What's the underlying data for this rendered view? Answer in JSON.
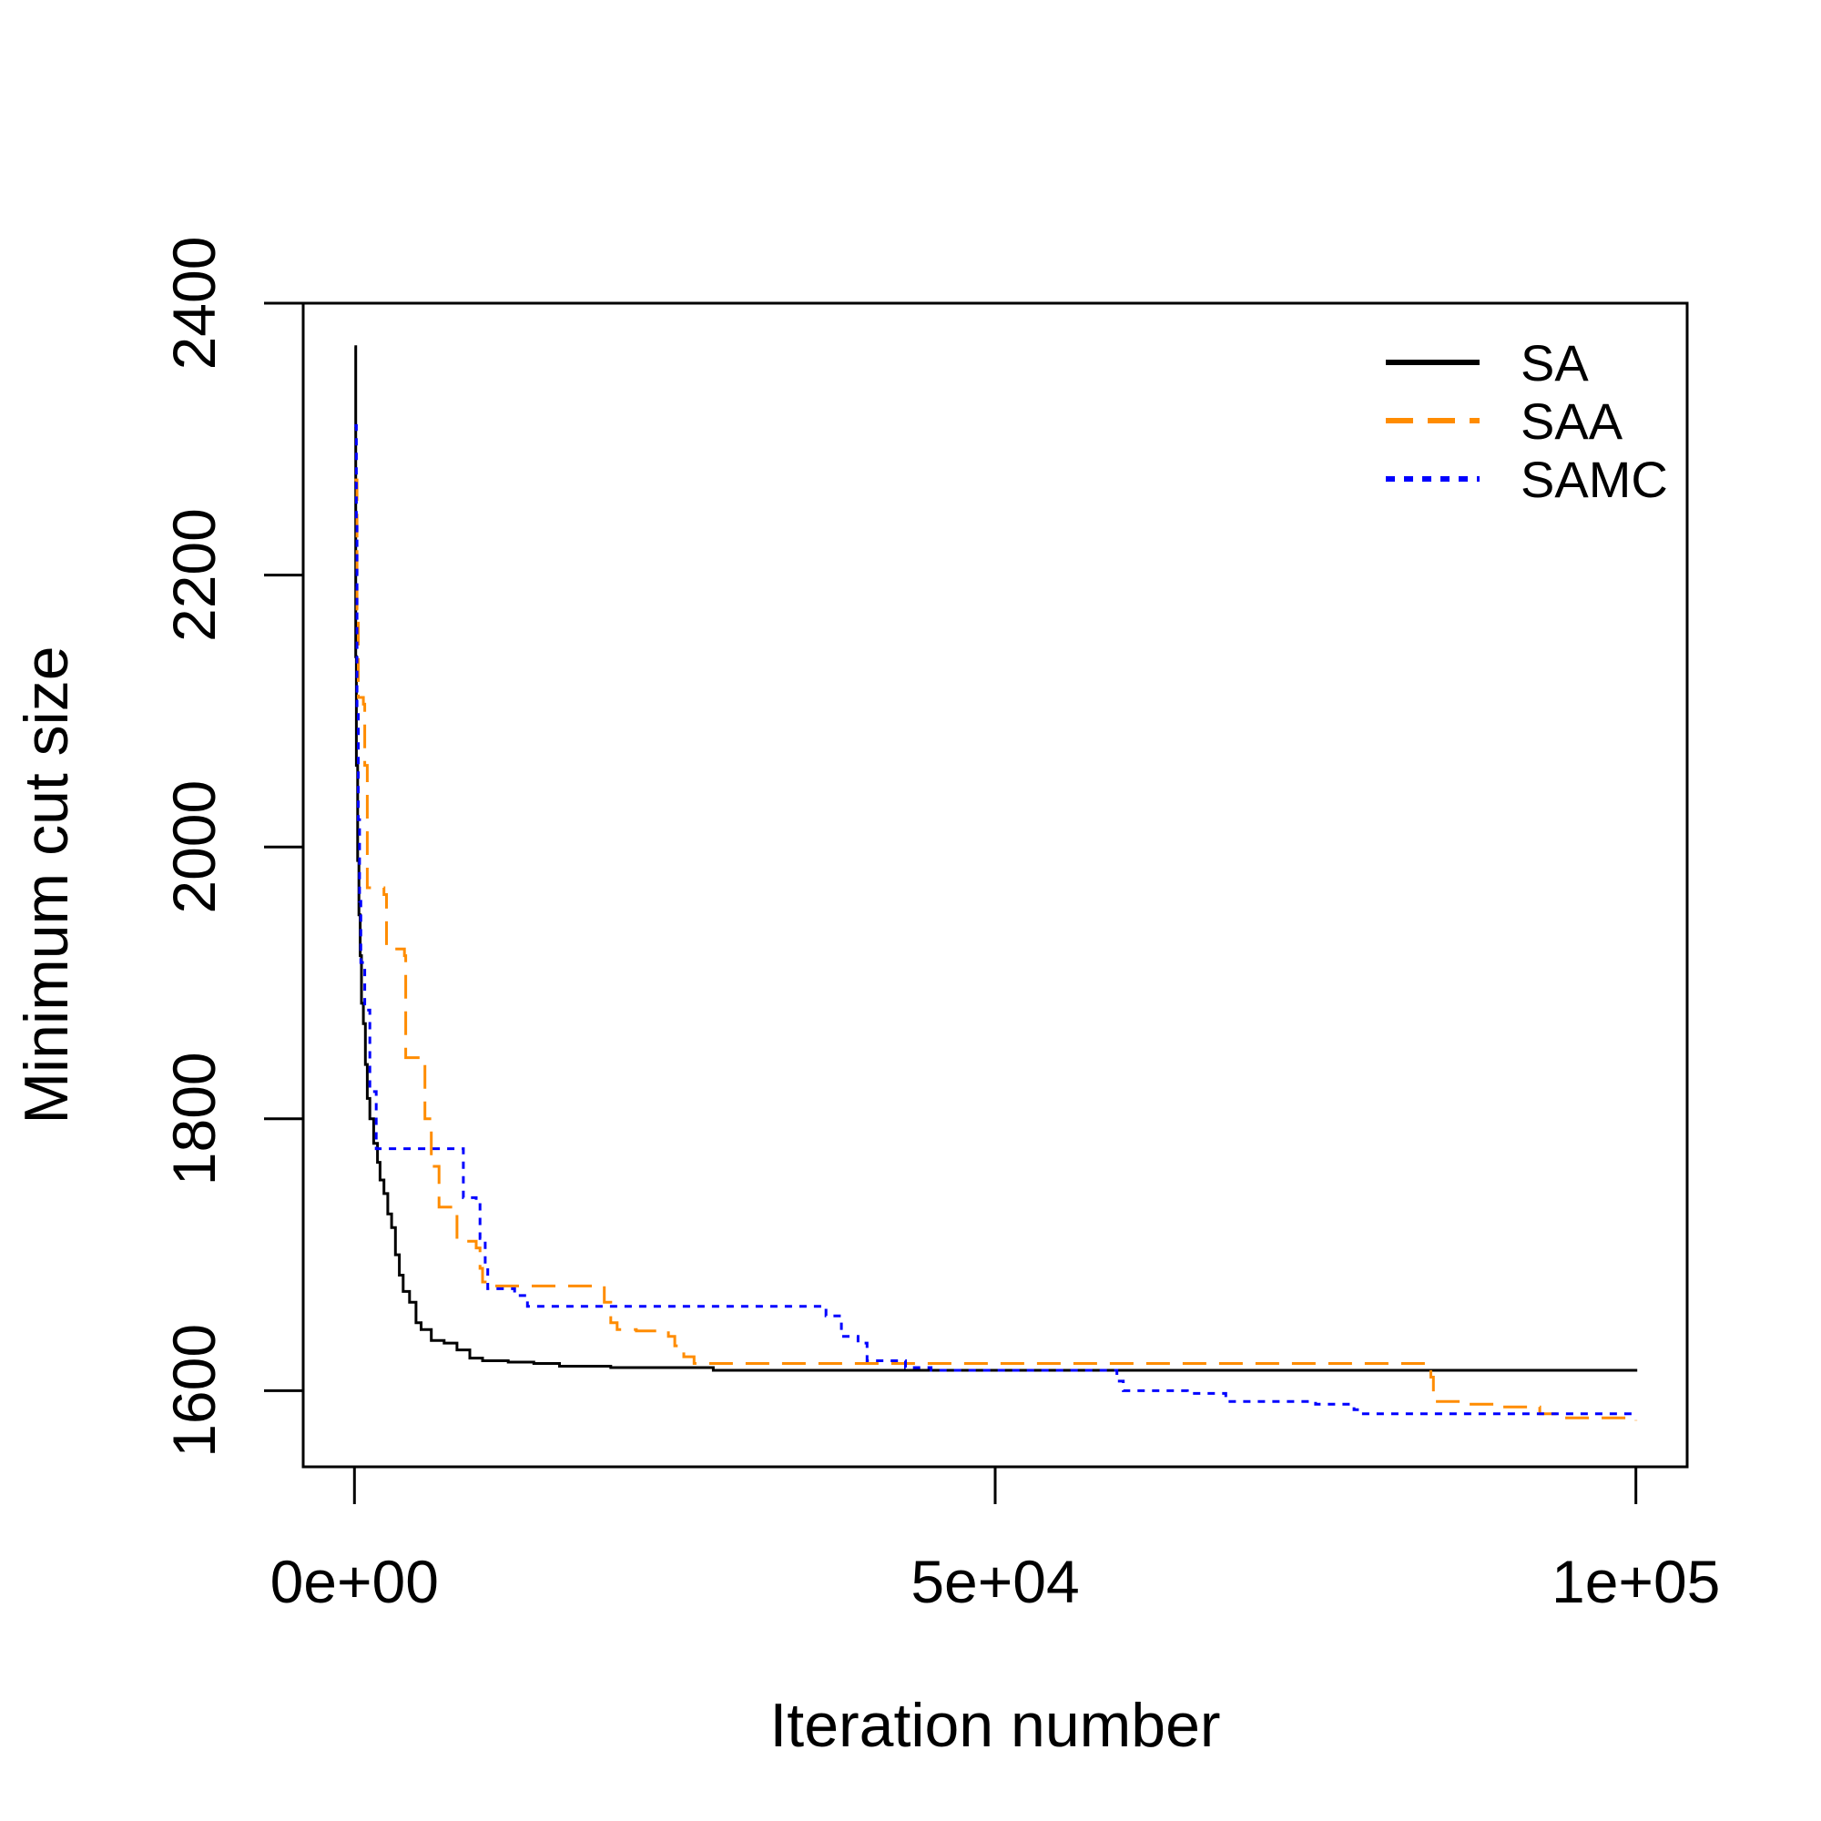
{
  "chart_data": {
    "type": "line",
    "title": "",
    "xlabel": "Iteration number",
    "ylabel": "Minimum cut size",
    "xlim": [
      -4000,
      104000
    ],
    "ylim": [
      1544,
      2400
    ],
    "xticks": [
      0,
      50000,
      100000
    ],
    "xtick_labels": [
      "0e+00",
      "5e+04",
      "1e+05"
    ],
    "yticks": [
      1600,
      1800,
      2000,
      2200,
      2400
    ],
    "ytick_labels": [
      "1600",
      "1800",
      "2000",
      "2200",
      "2400"
    ],
    "legend": {
      "position": "top-right",
      "box": false
    },
    "grid": false,
    "series": [
      {
        "name": "SA",
        "color": "#000000",
        "style": "solid",
        "points": [
          [
            0,
            2368
          ],
          [
            100,
            2140
          ],
          [
            150,
            2060
          ],
          [
            250,
            1990
          ],
          [
            350,
            1950
          ],
          [
            450,
            1920
          ],
          [
            550,
            1885
          ],
          [
            700,
            1870
          ],
          [
            850,
            1840
          ],
          [
            1000,
            1815
          ],
          [
            1200,
            1800
          ],
          [
            1500,
            1782
          ],
          [
            1800,
            1768
          ],
          [
            2000,
            1755
          ],
          [
            2300,
            1745
          ],
          [
            2600,
            1730
          ],
          [
            2900,
            1720
          ],
          [
            3200,
            1700
          ],
          [
            3500,
            1685
          ],
          [
            3800,
            1673
          ],
          [
            4300,
            1665
          ],
          [
            4800,
            1650
          ],
          [
            5200,
            1645
          ],
          [
            6000,
            1637
          ],
          [
            7000,
            1635
          ],
          [
            8000,
            1630
          ],
          [
            9000,
            1624
          ],
          [
            10000,
            1622
          ],
          [
            12000,
            1621
          ],
          [
            14000,
            1620
          ],
          [
            16000,
            1618
          ],
          [
            20000,
            1617
          ],
          [
            24000,
            1617
          ],
          [
            28000,
            1615
          ],
          [
            86000,
            1615
          ],
          [
            100000,
            1614
          ]
        ]
      },
      {
        "name": "SAA",
        "color": "#ff8c00",
        "style": "dashed",
        "points": [
          [
            0,
            2270
          ],
          [
            200,
            2175
          ],
          [
            300,
            2110
          ],
          [
            700,
            2105
          ],
          [
            800,
            2060
          ],
          [
            1000,
            1970
          ],
          [
            2300,
            1965
          ],
          [
            2500,
            1925
          ],
          [
            3900,
            1920
          ],
          [
            4000,
            1845
          ],
          [
            5200,
            1840
          ],
          [
            5500,
            1800
          ],
          [
            6000,
            1765
          ],
          [
            6600,
            1735
          ],
          [
            7800,
            1730
          ],
          [
            8000,
            1710
          ],
          [
            9500,
            1705
          ],
          [
            9800,
            1690
          ],
          [
            10000,
            1680
          ],
          [
            10500,
            1677
          ],
          [
            19000,
            1677
          ],
          [
            19500,
            1665
          ],
          [
            20000,
            1650
          ],
          [
            20500,
            1645
          ],
          [
            22000,
            1644
          ],
          [
            24500,
            1640
          ],
          [
            25000,
            1633
          ],
          [
            25700,
            1625
          ],
          [
            26500,
            1620
          ],
          [
            83600,
            1620
          ],
          [
            84000,
            1610
          ],
          [
            84200,
            1592
          ],
          [
            86500,
            1590
          ],
          [
            89000,
            1588
          ],
          [
            92500,
            1583
          ],
          [
            94000,
            1580
          ],
          [
            100000,
            1578
          ]
        ]
      },
      {
        "name": "SAMC",
        "color": "#0000ff",
        "style": "dotted",
        "points": [
          [
            0,
            2310
          ],
          [
            150,
            2240
          ],
          [
            200,
            2100
          ],
          [
            300,
            2020
          ],
          [
            400,
            1960
          ],
          [
            500,
            1915
          ],
          [
            800,
            1880
          ],
          [
            1200,
            1820
          ],
          [
            1700,
            1778
          ],
          [
            8300,
            1778
          ],
          [
            8500,
            1742
          ],
          [
            9500,
            1738
          ],
          [
            9800,
            1712
          ],
          [
            10200,
            1690
          ],
          [
            10400,
            1675
          ],
          [
            12500,
            1670
          ],
          [
            13500,
            1662
          ],
          [
            36000,
            1662
          ],
          [
            36800,
            1655
          ],
          [
            38000,
            1640
          ],
          [
            39300,
            1635
          ],
          [
            40000,
            1622
          ],
          [
            43000,
            1617
          ],
          [
            45000,
            1615
          ],
          [
            59000,
            1615
          ],
          [
            59500,
            1607
          ],
          [
            60000,
            1600
          ],
          [
            65000,
            1598
          ],
          [
            68000,
            1592
          ],
          [
            75000,
            1590
          ],
          [
            78000,
            1586
          ],
          [
            78500,
            1583
          ],
          [
            100000,
            1583
          ]
        ]
      }
    ]
  }
}
